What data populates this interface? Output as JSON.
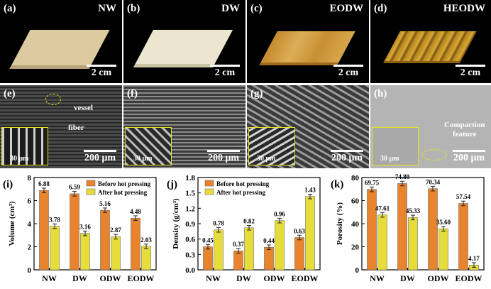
{
  "photos": [
    {
      "label": "(a)",
      "tag": "NW",
      "scale": "2 cm",
      "color": "#dccaa0"
    },
    {
      "label": "(b)",
      "tag": "DW",
      "scale": "2 cm",
      "color": "#ece6cf"
    },
    {
      "label": "(c)",
      "tag": "EODW",
      "scale": "2 cm",
      "color": "#cf9a3e"
    },
    {
      "label": "(d)",
      "tag": "HEODW",
      "scale": "2 cm",
      "color": "#c08b1d"
    }
  ],
  "sem": [
    {
      "label": "(e)",
      "scale": "200 μm",
      "inset_scale": "30 μm",
      "annotations": [
        "vessel",
        "fiber"
      ]
    },
    {
      "label": "(f)",
      "scale": "200 μm",
      "inset_scale": "30 μm",
      "annotations": []
    },
    {
      "label": "(g)",
      "scale": "200 μm",
      "inset_scale": "30 μm",
      "annotations": []
    },
    {
      "label": "(h)",
      "scale": "200 μm",
      "inset_scale": "30 μm",
      "annotations": [
        "Compaction",
        "feature"
      ]
    }
  ],
  "legend": {
    "before": "Before hot pressing",
    "after": "After hot pressing"
  },
  "colors": {
    "before": "#e8832e",
    "after": "#e6dc3c"
  },
  "chart_data": [
    {
      "type": "bar",
      "panel": "(i)",
      "categories": [
        "NW",
        "DW",
        "ODW",
        "EODW"
      ],
      "series": [
        {
          "name": "Before hot pressing",
          "values": [
            6.88,
            6.59,
            5.16,
            4.48
          ],
          "labels": [
            "6.88",
            "6.59",
            "5.16",
            "4.48"
          ]
        },
        {
          "name": "After hot pressing",
          "values": [
            3.78,
            3.16,
            2.87,
            2.03
          ],
          "labels": [
            "3.78",
            "3.16",
            "2.87",
            "2.03"
          ]
        }
      ],
      "ylabel": "Volume (cm³)",
      "ylim": [
        0,
        8
      ],
      "yticks": [
        "0",
        "2",
        "4",
        "6",
        "8"
      ],
      "ytick_values": [
        0,
        2,
        4,
        6,
        8
      ],
      "legend": "top-right"
    },
    {
      "type": "bar",
      "panel": "(j)",
      "categories": [
        "NW",
        "DW",
        "ODW",
        "EODW"
      ],
      "series": [
        {
          "name": "Before hot pressing",
          "values": [
            0.45,
            0.37,
            0.44,
            0.63
          ],
          "labels": [
            "0.45",
            "0.37",
            "0.44",
            "0.63"
          ]
        },
        {
          "name": "After hot pressing",
          "values": [
            0.78,
            0.82,
            0.96,
            1.43
          ],
          "labels": [
            "0.78",
            "0.82",
            "0.96",
            "1.43"
          ]
        }
      ],
      "ylabel": "Density (g/cm³)",
      "ylim": [
        0,
        1.8
      ],
      "yticks": [
        "0.0",
        "0.3",
        "0.6",
        "0.9",
        "1.2",
        "1.5",
        "1.8"
      ],
      "ytick_values": [
        0,
        0.3,
        0.6,
        0.9,
        1.2,
        1.5,
        1.8
      ],
      "legend": "top-left"
    },
    {
      "type": "bar",
      "panel": "(k)",
      "categories": [
        "NW",
        "DW",
        "ODW",
        "EODW"
      ],
      "series": [
        {
          "name": "Before hot pressing",
          "values": [
            69.75,
            74.8,
            70.34,
            57.54
          ],
          "labels": [
            "69.75",
            "74.80",
            "70.34",
            "57.54"
          ]
        },
        {
          "name": "After hot pressing",
          "values": [
            47.61,
            45.33,
            35.6,
            4.17
          ],
          "labels": [
            "47.61",
            "45.33",
            "35.60",
            "4.17"
          ]
        }
      ],
      "ylabel": "Porosity (%)",
      "ylim": [
        0,
        80
      ],
      "yticks": [
        "0",
        "20",
        "40",
        "60",
        "80"
      ],
      "ytick_values": [
        0,
        20,
        40,
        60,
        80
      ],
      "legend": "none"
    }
  ]
}
